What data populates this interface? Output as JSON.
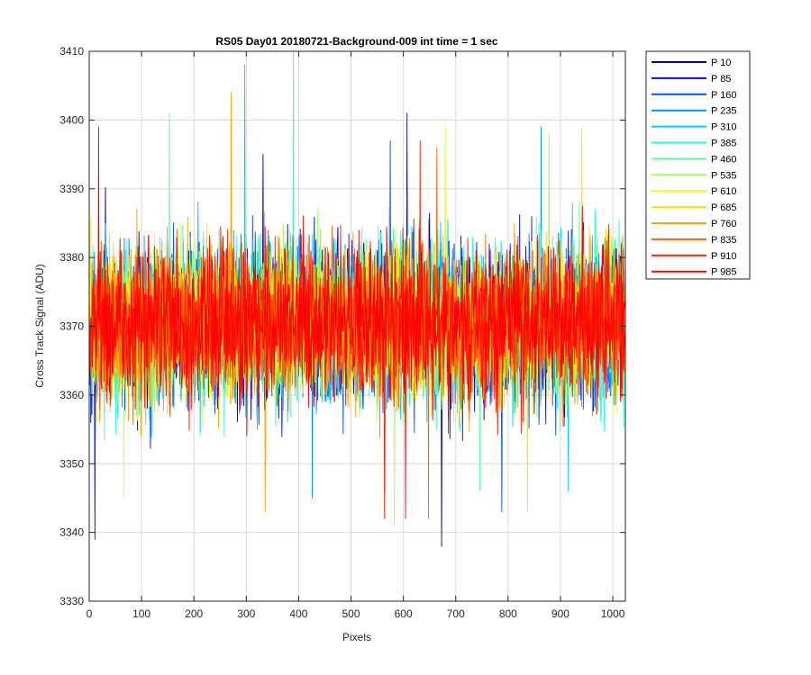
{
  "chart_data": {
    "type": "line",
    "title": "RS05 Day01 20180721-Background-009 int time = 1 sec",
    "xlabel": "Pixels",
    "ylabel": "Cross Track Signal (ADU)",
    "xlim": [
      0,
      1024
    ],
    "ylim": [
      3330,
      3410
    ],
    "xticks": [
      "0",
      "100",
      "200",
      "300",
      "400",
      "500",
      "600",
      "700",
      "800",
      "900",
      "1000"
    ],
    "yticks": [
      "3330",
      "3340",
      "3350",
      "3360",
      "3370",
      "3380",
      "3390",
      "3400",
      "3410"
    ],
    "grid": true,
    "legend_position": "outside-top-right",
    "series": [
      {
        "name": "P 10",
        "color": "#00008f",
        "mean": 3370.5,
        "min": 3338,
        "max": 3395
      },
      {
        "name": "P 85",
        "color": "#0010ff",
        "mean": 3370.5,
        "min": 3339,
        "max": 3401
      },
      {
        "name": "P 160",
        "color": "#0050ff",
        "mean": 3370.5,
        "min": 3343,
        "max": 3397
      },
      {
        "name": "P 235",
        "color": "#0090ff",
        "mean": 3370.5,
        "min": 3345,
        "max": 3399
      },
      {
        "name": "P 310",
        "color": "#00d0ff",
        "mean": 3370.5,
        "min": 3346,
        "max": 3408
      },
      {
        "name": "P 385",
        "color": "#20ffdf",
        "mean": 3370.5,
        "min": 3346,
        "max": 3410
      },
      {
        "name": "P 460",
        "color": "#60ffa0",
        "mean": 3370.5,
        "min": 3346,
        "max": 3401
      },
      {
        "name": "P 535",
        "color": "#9fff60",
        "mean": 3370.5,
        "min": 3341,
        "max": 3398
      },
      {
        "name": "P 610",
        "color": "#dfff20",
        "mean": 3370.5,
        "min": 3345,
        "max": 3399
      },
      {
        "name": "P 685",
        "color": "#ffe000",
        "mean": 3370.5,
        "min": 3343,
        "max": 3399
      },
      {
        "name": "P 760",
        "color": "#ffa000",
        "mean": 3370.5,
        "min": 3343,
        "max": 3404
      },
      {
        "name": "P 835",
        "color": "#ff6000",
        "mean": 3370.5,
        "min": 3342,
        "max": 3396
      },
      {
        "name": "P 910",
        "color": "#ff2000",
        "mean": 3370.5,
        "min": 3342,
        "max": 3397
      },
      {
        "name": "P 985",
        "color": "#ff0000",
        "mean": 3370.5,
        "min": 3342,
        "max": 3399
      }
    ]
  }
}
